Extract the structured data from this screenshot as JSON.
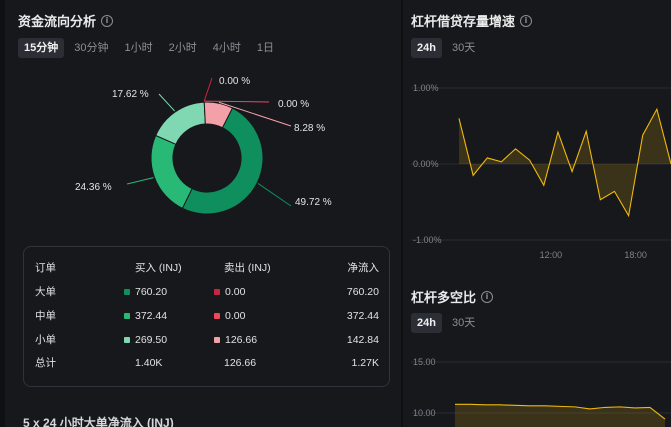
{
  "flow": {
    "title": "资金流向分析",
    "tabs": [
      "15分钟",
      "30分钟",
      "1小时",
      "2小时",
      "4小时",
      "1日"
    ],
    "active_tab": 0
  },
  "donut_colors": {
    "big_buy": "#0f8f5d",
    "mid_buy": "#28b977",
    "small_buy": "#7fd8b1",
    "big_sell": "#c7263e",
    "mid_sell": "#f0455b",
    "small_sell": "#f4a0a8"
  },
  "table": {
    "headers": {
      "name": "订单",
      "buy": "买入 (INJ)",
      "sell": "卖出 (INJ)",
      "net": "净流入"
    },
    "rows": [
      {
        "name": "大单",
        "buy": "760.20",
        "sell": "0.00",
        "net": "760.20",
        "buy_color": "#0f8f5d",
        "sell_color": "#c7263e"
      },
      {
        "name": "中单",
        "buy": "372.44",
        "sell": "0.00",
        "net": "372.44",
        "buy_color": "#28b977",
        "sell_color": "#f0455b"
      },
      {
        "name": "小单",
        "buy": "269.50",
        "sell": "126.66",
        "net": "142.84",
        "buy_color": "#7fd8b1",
        "sell_color": "#f4a0a8"
      }
    ],
    "total": {
      "name": "总计",
      "buy": "1.40K",
      "sell": "126.66",
      "net": "1.27K"
    }
  },
  "bottom_title": "5 x 24 小时大单净流入 (INJ)",
  "leverage": {
    "title": "杠杆借贷存量增速",
    "tabs": [
      "24h",
      "30天"
    ],
    "active_tab": 0
  },
  "longshort": {
    "title": "杠杆多空比",
    "tabs": [
      "24h",
      "30天"
    ],
    "active_tab": 0
  },
  "chart_data": [
    {
      "type": "pie",
      "categories": [
        "大单买入",
        "中单买入",
        "小单买入",
        "大单卖出",
        "中单卖出",
        "小单卖出"
      ],
      "values": [
        49.72,
        24.36,
        17.62,
        0.0,
        0.0,
        8.28
      ],
      "labels": [
        "49.72 %",
        "24.36 %",
        "17.62 %",
        "0.00 %",
        "0.00 %",
        "8.28 %"
      ]
    },
    {
      "type": "area",
      "yticks": [
        "1.00%",
        "0.00%",
        "-1.00%"
      ],
      "ylim": [
        -1.0,
        1.0
      ],
      "xticks": [
        "12:00",
        "18:00"
      ],
      "xtick_positions": [
        6.5,
        12.5
      ],
      "values": [
        0.6,
        -0.15,
        0.08,
        0.03,
        0.2,
        0.05,
        -0.28,
        0.42,
        -0.1,
        0.43,
        -0.47,
        -0.36,
        -0.68,
        0.38,
        0.72,
        0.0
      ],
      "color": "#f0b90b"
    },
    {
      "type": "area",
      "yticks": [
        "15.00",
        "10.00"
      ],
      "ylim": [
        10.0,
        15.0
      ],
      "values": [
        10.85,
        10.85,
        10.8,
        10.8,
        10.75,
        10.7,
        10.7,
        10.65,
        10.6,
        10.4,
        10.55,
        10.6,
        10.5,
        10.55,
        9.4
      ],
      "color": "#f0b90b"
    }
  ]
}
